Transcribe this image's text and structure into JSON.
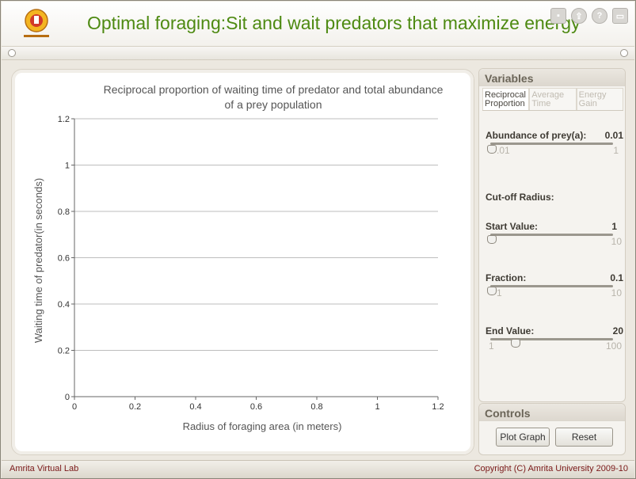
{
  "header": {
    "title": "Optimal foraging:Sit and wait predators that maximize energy",
    "title_color": "#4e8a12",
    "icons": [
      "save-icon",
      "export-icon",
      "help-icon",
      "fullscreen-icon"
    ]
  },
  "chart_data": {
    "type": "line",
    "title": "Reciprocal proportion of waiting time of predator and total abundance of a prey  population",
    "title_lines": [
      "Reciprocal proportion of waiting time of predator and total abundance",
      "of a prey  population"
    ],
    "xlabel": "Radius of foraging area (in meters)",
    "ylabel": "Waiting time of predator(in seconds)",
    "xlim": [
      0,
      1.2
    ],
    "ylim": [
      0,
      1.2
    ],
    "xticks": [
      "0",
      "0.2",
      "0.4",
      "0.6",
      "0.8",
      "1",
      "1.2"
    ],
    "yticks": [
      "0",
      "0.2",
      "0.4",
      "0.6",
      "0.8",
      "1",
      "1.2"
    ],
    "grid": "horizontal",
    "series": []
  },
  "variables": {
    "heading": "Variables",
    "tabs": [
      {
        "label": "Reciprocal Proportion",
        "active": true
      },
      {
        "label": "Average Time",
        "active": false
      },
      {
        "label": "Energy Gain",
        "active": false
      }
    ],
    "abundance": {
      "label": "Abundance of prey(a):",
      "value": "0.01",
      "min": ".01",
      "max": "1"
    },
    "cutoff_label": "Cut-off Radius:",
    "start": {
      "label": "Start Value:",
      "value": "1",
      "min": "1",
      "max": "10"
    },
    "fraction": {
      "label": "Fraction:",
      "value": "0.1",
      "min": "1",
      "max": "10"
    },
    "end": {
      "label": "End Value:",
      "value": "20",
      "min": "1",
      "max": "100"
    }
  },
  "controls": {
    "heading": "Controls",
    "plot_label": "Plot Graph",
    "reset_label": "Reset"
  },
  "footer": {
    "left": "Amrita Virtual Lab",
    "right": "Copyright (C) Amrita University 2009-10"
  }
}
